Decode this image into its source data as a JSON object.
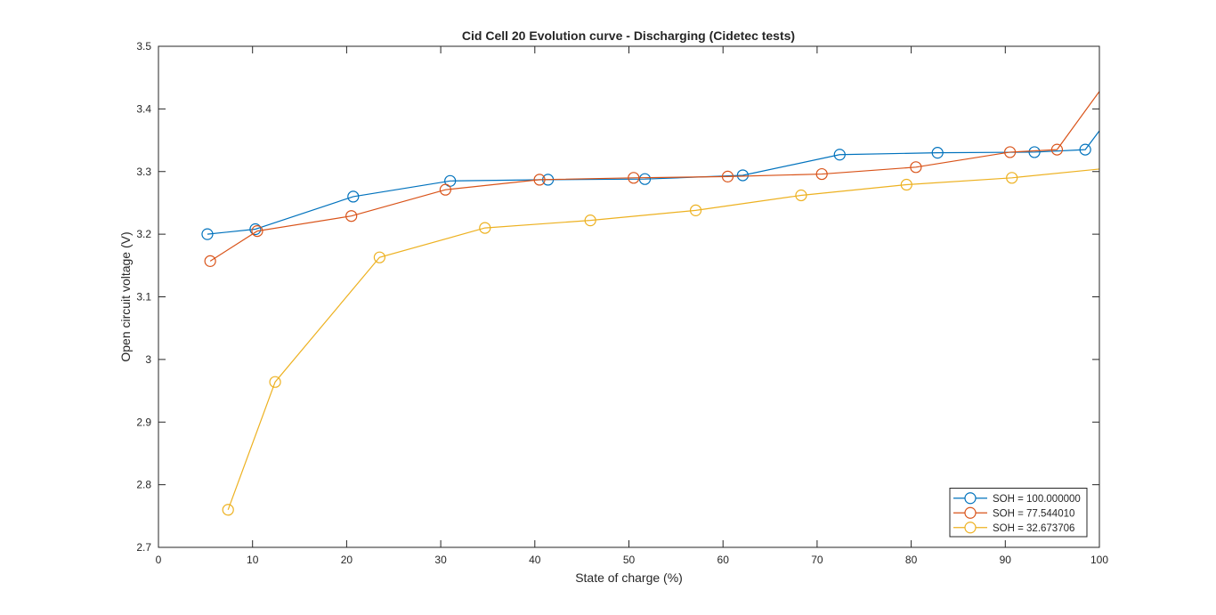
{
  "chart_data": {
    "type": "line",
    "title": "Cid Cell 20 Evolution curve - Discharging (Cidetec tests)",
    "xlabel": "State of charge (%)",
    "ylabel": "Open circuit voltage (V)",
    "xlim": [
      0,
      100
    ],
    "ylim": [
      2.7,
      3.5
    ],
    "xticks": [
      0,
      10,
      20,
      30,
      40,
      50,
      60,
      70,
      80,
      90,
      100
    ],
    "yticks": [
      2.7,
      2.8,
      2.9,
      3.0,
      3.1,
      3.2,
      3.3,
      3.4,
      3.5
    ],
    "xtick_labels": [
      "0",
      "10",
      "20",
      "30",
      "40",
      "50",
      "60",
      "70",
      "80",
      "90",
      "100"
    ],
    "ytick_labels": [
      "2.7",
      "2.8",
      "2.9",
      "3",
      "3.1",
      "3.2",
      "3.3",
      "3.4",
      "3.5"
    ],
    "grid": false,
    "legend_position": "bottom-right",
    "marker": "circle",
    "series": [
      {
        "name": "SOH = 100.000000",
        "color": "#0072BD",
        "x": [
          5.2,
          10.3,
          20.7,
          31.0,
          41.4,
          51.7,
          62.1,
          72.4,
          82.8,
          93.1,
          98.5,
          100.0
        ],
        "y": [
          3.2,
          3.208,
          3.26,
          3.285,
          3.287,
          3.288,
          3.294,
          3.327,
          3.33,
          3.331,
          3.335,
          3.365
        ],
        "marker_count": 11
      },
      {
        "name": "SOH = 77.544010",
        "color": "#D95319",
        "x": [
          5.5,
          10.5,
          20.5,
          30.5,
          40.5,
          50.5,
          60.5,
          70.5,
          80.5,
          90.5,
          95.5,
          100.0
        ],
        "y": [
          3.157,
          3.205,
          3.229,
          3.271,
          3.287,
          3.29,
          3.292,
          3.296,
          3.307,
          3.331,
          3.335,
          3.428
        ],
        "marker_count": 11
      },
      {
        "name": "SOH = 32.673706",
        "color": "#EDB120",
        "x": [
          7.4,
          12.4,
          23.5,
          34.7,
          45.9,
          57.1,
          68.3,
          79.5,
          90.7,
          100.0
        ],
        "y": [
          2.76,
          2.964,
          3.163,
          3.21,
          3.222,
          3.238,
          3.262,
          3.279,
          3.29,
          3.304
        ],
        "marker_count": 9
      }
    ]
  }
}
